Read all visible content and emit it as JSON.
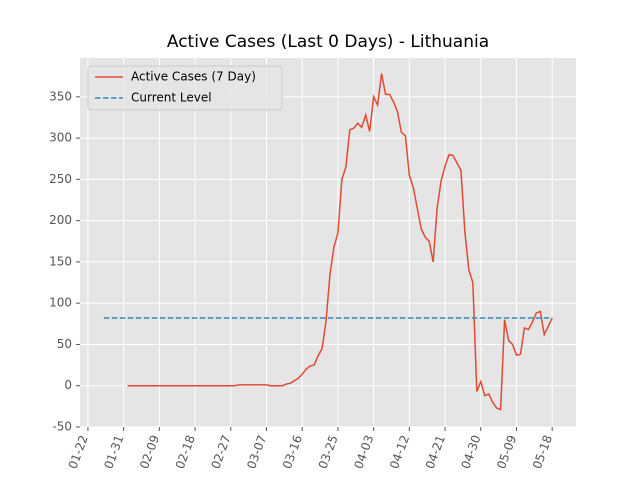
{
  "chart_data": {
    "type": "line",
    "title": "Active Cases (Last 0 Days) - Lithuania",
    "series": [
      {
        "name": "Active Cases (7 Day)",
        "color": "#e24a33",
        "style": "solid",
        "x": [
          "02-01",
          "02-02",
          "02-03",
          "02-04",
          "02-05",
          "02-06",
          "02-07",
          "02-08",
          "02-09",
          "02-10",
          "02-11",
          "02-12",
          "02-13",
          "02-14",
          "02-15",
          "02-16",
          "02-17",
          "02-18",
          "02-19",
          "02-20",
          "02-21",
          "02-22",
          "02-23",
          "02-24",
          "02-25",
          "02-26",
          "02-27",
          "02-28",
          "02-29",
          "03-01",
          "03-02",
          "03-03",
          "03-04",
          "03-05",
          "03-06",
          "03-07",
          "03-08",
          "03-09",
          "03-10",
          "03-11",
          "03-12",
          "03-13",
          "03-14",
          "03-15",
          "03-16",
          "03-17",
          "03-18",
          "03-19",
          "03-20",
          "03-21",
          "03-22",
          "03-23",
          "03-24",
          "03-25",
          "03-26",
          "03-27",
          "03-28",
          "03-29",
          "03-30",
          "03-31",
          "04-01",
          "04-02",
          "04-03",
          "04-04",
          "04-05",
          "04-06",
          "04-07",
          "04-08",
          "04-09",
          "04-10",
          "04-11",
          "04-12",
          "04-13",
          "04-14",
          "04-15",
          "04-16",
          "04-17",
          "04-18",
          "04-19",
          "04-20",
          "04-21",
          "04-22",
          "04-23",
          "04-24",
          "04-25",
          "04-26",
          "04-27",
          "04-28",
          "04-29",
          "04-30",
          "05-01",
          "05-02",
          "05-03",
          "05-04",
          "05-05",
          "05-06",
          "05-07",
          "05-08",
          "05-09",
          "05-10",
          "05-11",
          "05-12",
          "05-13",
          "05-14",
          "05-15",
          "05-16",
          "05-17",
          "05-18"
        ],
        "values": [
          0,
          0,
          0,
          0,
          0,
          0,
          0,
          0,
          0,
          0,
          0,
          0,
          0,
          0,
          0,
          0,
          0,
          0,
          0,
          0,
          0,
          0,
          0,
          0,
          0,
          0,
          0,
          0,
          1,
          1,
          1,
          1,
          1,
          1,
          1,
          1,
          0,
          0,
          0,
          0,
          2,
          3,
          6,
          9,
          14,
          20,
          24,
          25,
          36,
          45,
          78,
          135,
          168,
          185,
          250,
          265,
          310,
          312,
          318,
          313,
          328,
          308,
          350,
          340,
          378,
          353,
          353,
          344,
          332,
          307,
          303,
          255,
          240,
          215,
          190,
          180,
          175,
          150,
          215,
          248,
          266,
          280,
          279,
          270,
          261,
          186,
          140,
          125,
          -7,
          5,
          -12,
          -10,
          -20,
          -27,
          -29,
          80,
          55,
          50,
          37,
          38,
          70,
          68,
          77,
          88,
          90,
          62,
          72,
          82
        ]
      },
      {
        "name": "Current Level",
        "color": "#348abd",
        "style": "dashed",
        "x": [
          "01-26",
          "05-18"
        ],
        "values": [
          82,
          82
        ]
      }
    ],
    "xlim": [
      "01-20",
      "05-24"
    ],
    "xticks": [
      "01-22",
      "01-31",
      "02-09",
      "02-18",
      "02-27",
      "03-07",
      "03-16",
      "03-25",
      "04-03",
      "04-12",
      "04-21",
      "04-30",
      "05-09",
      "05-18"
    ],
    "ylim": [
      -50,
      397
    ],
    "yticks": [
      -50,
      0,
      50,
      100,
      150,
      200,
      250,
      300,
      350
    ],
    "grid": true,
    "legend": "upper left"
  }
}
